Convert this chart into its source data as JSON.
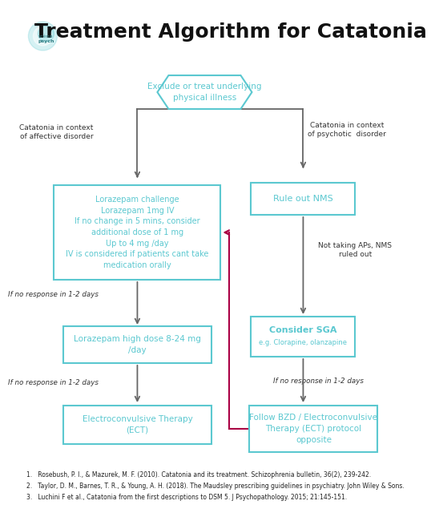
{
  "title": "Treatment Algorithm for Catatonia",
  "bg_color": "#ffffff",
  "box_color": "#5bc8d0",
  "box_text_color": "#5bc8d0",
  "arrow_color": "#666666",
  "pink_arrow_color": "#aa0044",
  "hexagon_text": "Exclude or treat underlying\nphysical illness",
  "left_label": "Catatonia in context\nof affective disorder",
  "right_label": "Catatonia in context\nof psychotic  disorder",
  "box1_text": "Lorazepam challenge\nLorazepam 1mg IV\nIf no change in 5 mins, consider\nadditional dose of 1 mg\nUp to 4 mg /day\nIV is considered if patients cant take\nmedication orally",
  "box2_text": "Rule out NMS",
  "box3_text": "Lorazepam high dose 8-24 mg\n/day",
  "box4_text": "Consider SGA\ne.g. Clorapine, olanzapine",
  "box5_text": "Electroconvulsive Therapy\n(ECT)",
  "box6_text": "Follow BZD / Electroconvulsive\nTherapy (ECT) protocol\nopposite",
  "label_no_response1": "If no response in 1-2 days",
  "label_no_response2": "If no response in 1-2 days",
  "label_no_response3": "Not taking APs, NMS\nruled out",
  "label_no_response4": "If no response in 1-2 days",
  "ref1": "1.   Rosebush, P. I., & Mazurek, M. F. (2010). Catatonia and its treatment. Schizophrenia bulletin, 36(2), 239-242.",
  "ref2": "2.   Taylor, D. M., Barnes, T. R., & Young, A. H. (2018). The Maudsley prescribing guidelines in psychiatry. John Wiley & Sons.",
  "ref3": "3.   Luchini F et al., Catatonia from the first descriptions to DSM 5. J Psychopathology. 2015; 21:145-151."
}
